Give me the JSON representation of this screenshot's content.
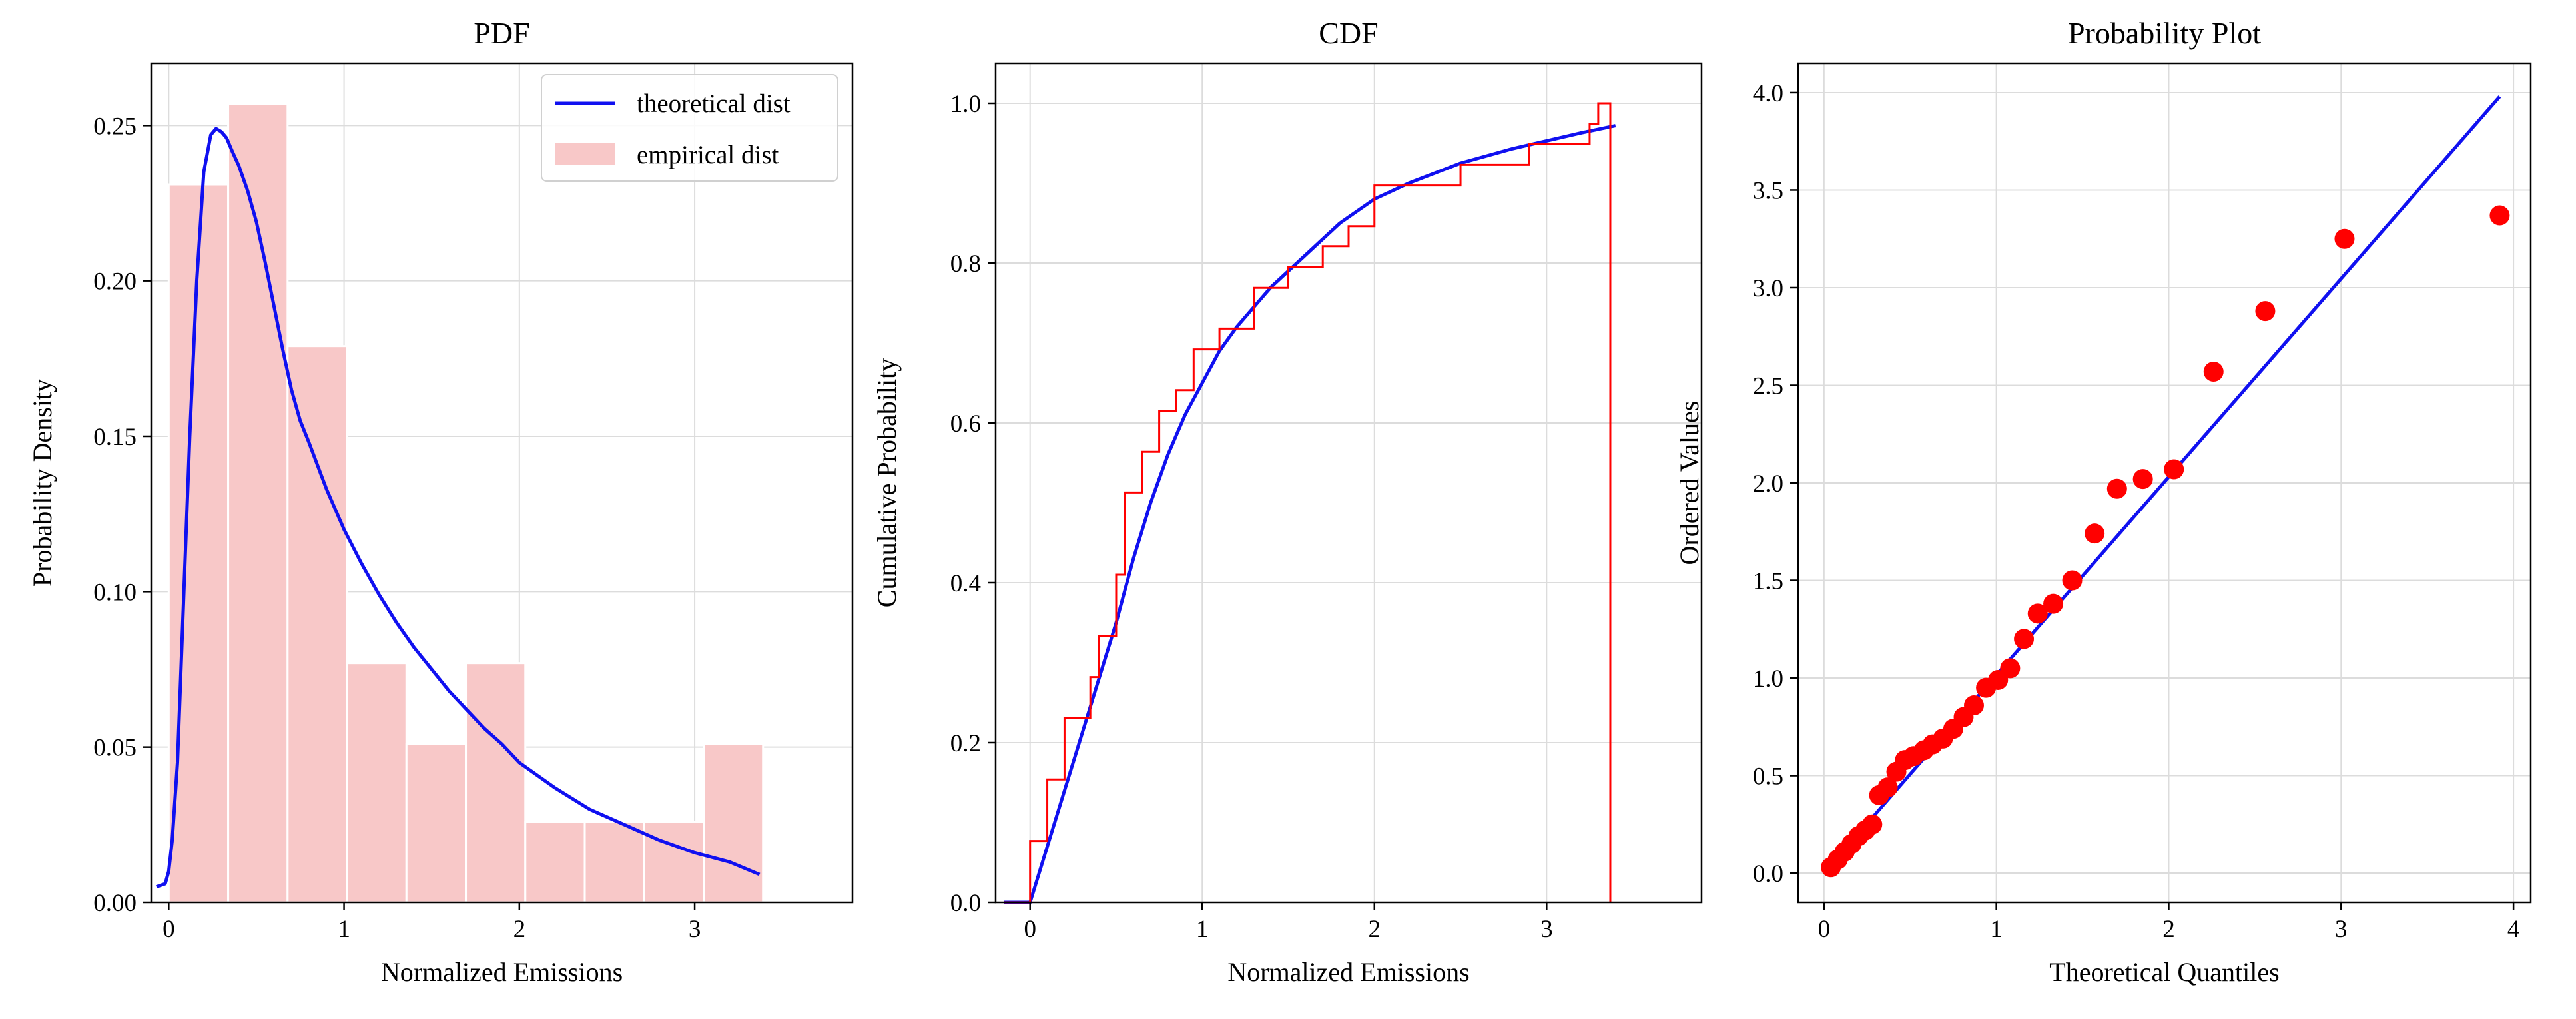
{
  "chart_data": [
    {
      "type": "bar",
      "title": "PDF",
      "xlabel": "Normalized Emissions",
      "ylabel": "Probability Density",
      "xlim": [
        -0.1,
        3.9
      ],
      "ylim": [
        0,
        0.27
      ],
      "xticks": [
        "0",
        "1",
        "2",
        "3"
      ],
      "yticks": [
        "0.00",
        "0.05",
        "0.10",
        "0.15",
        "0.20",
        "0.25"
      ],
      "grid": true,
      "legend": {
        "position": "top-right",
        "entries": [
          "theoretical dist",
          "empirical dist"
        ]
      },
      "histogram": {
        "name": "empirical dist",
        "color": "#f8c8c8",
        "bin_width": 0.339,
        "bin_starts": [
          0.0,
          0.339,
          0.678,
          1.017,
          1.356,
          1.695,
          2.034,
          2.373,
          2.712,
          3.051
        ],
        "values": [
          0.231,
          0.257,
          0.179,
          0.077,
          0.051,
          0.077,
          0.026,
          0.026,
          0.026,
          0.051
        ]
      },
      "line": {
        "name": "theoretical dist",
        "color": "#1010f0",
        "x": [
          -0.07,
          -0.02,
          0.0,
          0.02,
          0.05,
          0.08,
          0.12,
          0.16,
          0.2,
          0.24,
          0.27,
          0.3,
          0.33,
          0.36,
          0.4,
          0.45,
          0.5,
          0.55,
          0.6,
          0.65,
          0.7,
          0.75,
          0.8,
          0.9,
          1.0,
          1.1,
          1.2,
          1.3,
          1.4,
          1.5,
          1.6,
          1.7,
          1.8,
          1.9,
          2.0,
          2.2,
          2.4,
          2.6,
          2.8,
          3.0,
          3.2,
          3.37
        ],
        "y": [
          0.005,
          0.006,
          0.01,
          0.02,
          0.045,
          0.09,
          0.15,
          0.2,
          0.235,
          0.247,
          0.249,
          0.248,
          0.246,
          0.242,
          0.237,
          0.229,
          0.219,
          0.206,
          0.192,
          0.178,
          0.165,
          0.155,
          0.148,
          0.133,
          0.12,
          0.109,
          0.099,
          0.09,
          0.082,
          0.075,
          0.068,
          0.062,
          0.056,
          0.051,
          0.045,
          0.037,
          0.03,
          0.025,
          0.02,
          0.016,
          0.013,
          0.009
        ]
      }
    },
    {
      "type": "line",
      "title": "CDF",
      "xlabel": "Normalized Emissions",
      "ylabel": "Cumulative Probability",
      "xlim": [
        -0.2,
        3.9
      ],
      "ylim": [
        0,
        1.05
      ],
      "xticks": [
        "0",
        "1",
        "2",
        "3"
      ],
      "yticks": [
        "0.0",
        "0.2",
        "0.4",
        "0.6",
        "0.8",
        "1.0"
      ],
      "grid": true,
      "series": [
        {
          "kind": "theoretical",
          "color": "#1010f0",
          "x": [
            -0.15,
            0.0,
            0.1,
            0.2,
            0.3,
            0.4,
            0.5,
            0.6,
            0.7,
            0.8,
            0.9,
            1.0,
            1.1,
            1.2,
            1.4,
            1.6,
            1.8,
            2.0,
            2.2,
            2.5,
            2.8,
            3.0,
            3.2,
            3.4
          ],
          "y": [
            0.0,
            0.0,
            0.07,
            0.14,
            0.21,
            0.28,
            0.35,
            0.43,
            0.5,
            0.56,
            0.61,
            0.65,
            0.69,
            0.72,
            0.77,
            0.81,
            0.85,
            0.88,
            0.9,
            0.925,
            0.943,
            0.953,
            0.963,
            0.972
          ]
        },
        {
          "kind": "empirical-step",
          "color": "#ff0000",
          "x": [
            -0.15,
            0.0,
            0.1,
            0.2,
            0.35,
            0.4,
            0.5,
            0.55,
            0.65,
            0.75,
            0.85,
            0.95,
            1.1,
            1.3,
            1.5,
            1.7,
            1.85,
            2.0,
            2.2,
            2.5,
            2.9,
            3.25,
            3.3
          ],
          "y": [
            0.0,
            0.077,
            0.154,
            0.231,
            0.282,
            0.333,
            0.41,
            0.513,
            0.564,
            0.615,
            0.641,
            0.692,
            0.718,
            0.769,
            0.795,
            0.821,
            0.846,
            0.897,
            0.897,
            0.923,
            0.949,
            0.974,
            1.0
          ],
          "x_end": 3.37
        }
      ]
    },
    {
      "type": "scatter",
      "title": "Probability Plot",
      "xlabel": "Theoretical Quantiles",
      "ylabel": "Ordered Values",
      "xlim": [
        -0.15,
        4.1
      ],
      "ylim": [
        -0.15,
        4.15
      ],
      "xticks": [
        "0",
        "1",
        "2",
        "3",
        "4"
      ],
      "yticks": [
        "0.0",
        "0.5",
        "1.0",
        "1.5",
        "2.0",
        "2.5",
        "3.0",
        "3.5",
        "4.0"
      ],
      "grid": true,
      "fit_line": {
        "color": "#1010f0",
        "x": [
          0.0,
          3.92
        ],
        "y": [
          0.0,
          3.98
        ]
      },
      "points": {
        "color": "#ff0000",
        "x": [
          0.04,
          0.08,
          0.12,
          0.16,
          0.2,
          0.24,
          0.28,
          0.32,
          0.37,
          0.42,
          0.47,
          0.52,
          0.58,
          0.63,
          0.69,
          0.75,
          0.81,
          0.87,
          0.94,
          1.01,
          1.08,
          1.16,
          1.24,
          1.33,
          1.44,
          1.57,
          1.7,
          1.85,
          2.03,
          2.26,
          2.56,
          3.02,
          3.92
        ],
        "y": [
          0.03,
          0.07,
          0.11,
          0.15,
          0.19,
          0.22,
          0.25,
          0.4,
          0.44,
          0.52,
          0.58,
          0.6,
          0.63,
          0.66,
          0.69,
          0.74,
          0.8,
          0.86,
          0.95,
          0.99,
          1.05,
          1.2,
          1.33,
          1.38,
          1.5,
          1.74,
          1.97,
          2.02,
          2.07,
          2.57,
          2.88,
          3.25,
          3.37
        ]
      }
    }
  ]
}
